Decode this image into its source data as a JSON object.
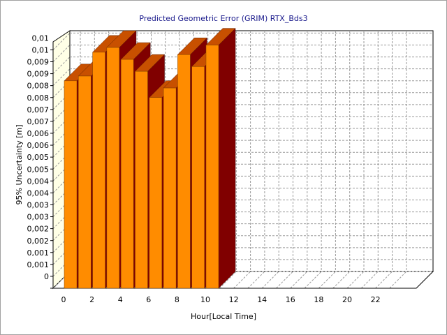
{
  "chart_data": {
    "type": "bar3d",
    "title": "Predicted Geometric Error (GRIM) RTX_Bds3",
    "x_label": "Hour[Local Time]",
    "y_label": "95% Uncertainty [m]",
    "categories": [
      0,
      null,
      2,
      null,
      4,
      null,
      6,
      null,
      8,
      null,
      10,
      null,
      12,
      null,
      14,
      null,
      16,
      null,
      18,
      null,
      20,
      null,
      22,
      null
    ],
    "values": [
      0.0087,
      0.0089,
      0.0099,
      0.0101,
      0.0096,
      0.0091,
      0.008,
      0.0084,
      0.0098,
      0.0093,
      0.0102,
      null,
      null,
      null,
      null,
      null,
      null,
      null,
      null,
      null,
      null,
      null,
      null,
      null
    ],
    "colors": {
      "front": "#ff8c00",
      "top": "#c85000",
      "side": "#800000"
    },
    "ylim": [
      0,
      0.0101
    ],
    "yticks": [
      0,
      {
        "value": 0.0005,
        "label": "0,001"
      },
      {
        "value": 0.001,
        "label": "0,001"
      },
      {
        "value": 0.0015,
        "label": "0,002"
      },
      {
        "value": 0.002,
        "label": "0,002"
      },
      {
        "value": 0.0025,
        "label": "0,003"
      },
      {
        "value": 0.003,
        "label": "0,003"
      },
      {
        "value": 0.0035,
        "label": "0,004"
      },
      {
        "value": 0.004,
        "label": "0,004"
      },
      {
        "value": 0.0045,
        "label": "0,005"
      },
      {
        "value": 0.005,
        "label": "0,005"
      },
      {
        "value": 0.0055,
        "label": "0,006"
      },
      {
        "value": 0.006,
        "label": "0,006"
      },
      {
        "value": 0.0065,
        "label": "0,007"
      },
      {
        "value": 0.007,
        "label": "0,007"
      },
      {
        "value": 0.0075,
        "label": "0,008"
      },
      {
        "value": 0.008,
        "label": "0,008"
      },
      {
        "value": 0.0085,
        "label": "0,009"
      },
      {
        "value": 0.009,
        "label": "0,009"
      },
      {
        "value": 0.0095,
        "label": "0,01"
      },
      {
        "value": 0.01,
        "label": "0,01"
      }
    ],
    "grid": true
  }
}
